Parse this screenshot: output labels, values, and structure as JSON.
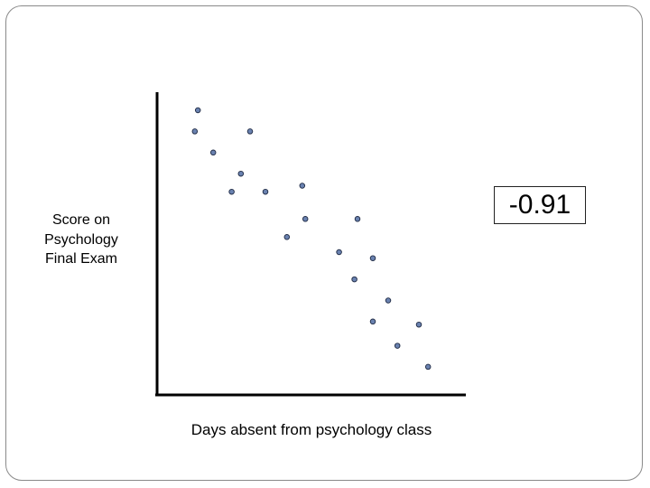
{
  "chart_data": {
    "type": "scatter",
    "xlabel": "Days absent from psychology class",
    "ylabel": "Score on\nPsychology\nFinal Exam",
    "annotation": "-0.91",
    "point_color": "#6a82b0",
    "point_edge": "#1f2a44",
    "axis_color": "#000000",
    "points": [
      {
        "x": 1.3,
        "y": 9.4
      },
      {
        "x": 1.2,
        "y": 8.7
      },
      {
        "x": 3.0,
        "y": 8.7
      },
      {
        "x": 1.8,
        "y": 8.0
      },
      {
        "x": 2.7,
        "y": 7.3
      },
      {
        "x": 2.4,
        "y": 6.7
      },
      {
        "x": 3.5,
        "y": 6.7
      },
      {
        "x": 4.7,
        "y": 6.9
      },
      {
        "x": 4.8,
        "y": 5.8
      },
      {
        "x": 6.5,
        "y": 5.8
      },
      {
        "x": 4.2,
        "y": 5.2
      },
      {
        "x": 5.9,
        "y": 4.7
      },
      {
        "x": 7.0,
        "y": 4.5
      },
      {
        "x": 6.4,
        "y": 3.8
      },
      {
        "x": 7.5,
        "y": 3.1
      },
      {
        "x": 7.0,
        "y": 2.4
      },
      {
        "x": 8.5,
        "y": 2.3
      },
      {
        "x": 7.8,
        "y": 1.6
      },
      {
        "x": 8.8,
        "y": 0.9
      }
    ],
    "xlim": [
      0,
      10
    ],
    "ylim": [
      0,
      10
    ],
    "grid": false,
    "legend": "none"
  }
}
